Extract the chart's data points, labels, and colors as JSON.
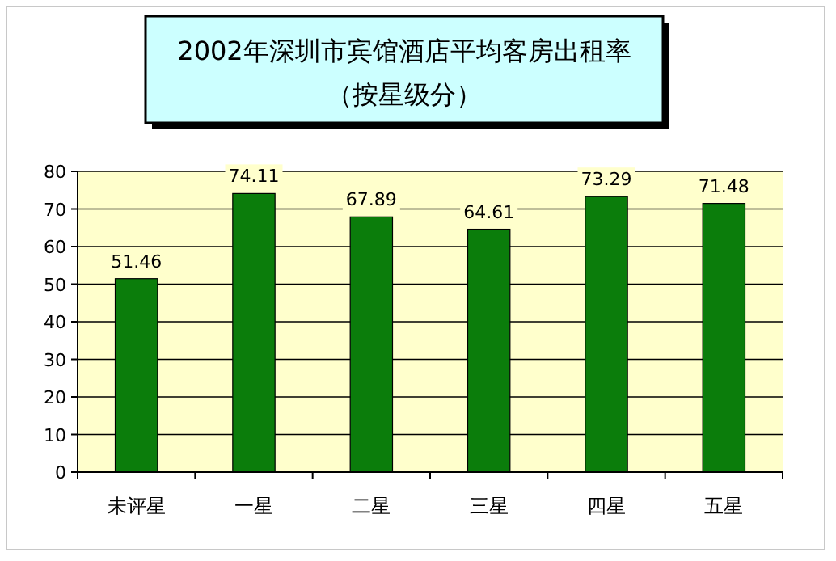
{
  "chart_data": {
    "type": "bar",
    "title": "2002年深圳市宾馆酒店平均客房出租率",
    "subtitle": "（按星级分）",
    "categories": [
      "未评星",
      "一星",
      "二星",
      "三星",
      "四星",
      "五星"
    ],
    "values": [
      51.46,
      74.11,
      67.89,
      64.61,
      73.29,
      71.48
    ],
    "color": "#0b7d0b",
    "ylim": [
      0,
      80
    ],
    "yticks": [
      0,
      10,
      20,
      30,
      40,
      50,
      60,
      70,
      80
    ],
    "grid": "y",
    "data_labels": true
  }
}
